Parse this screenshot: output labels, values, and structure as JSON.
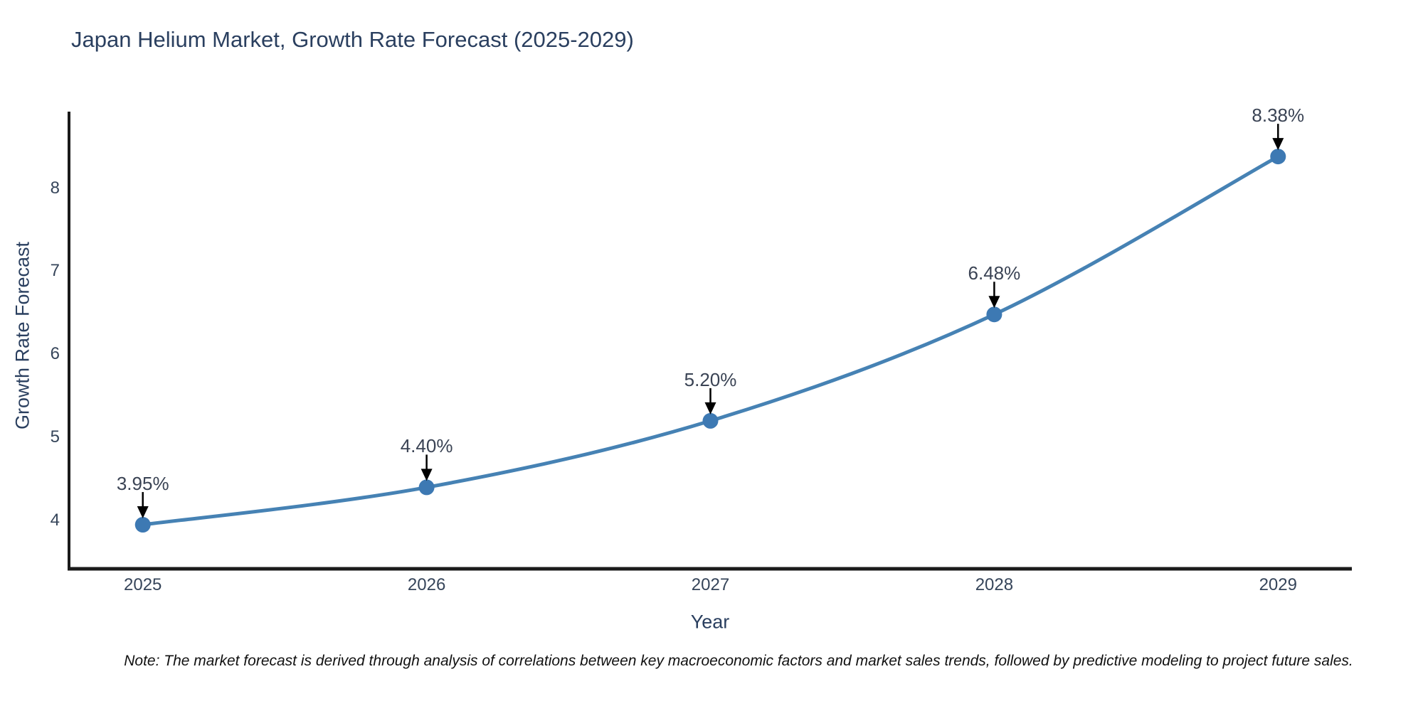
{
  "title": "Japan Helium Market, Growth Rate Forecast (2025-2029)",
  "note": "Note: The market forecast is derived through analysis of correlations between key macroeconomic factors and market sales trends, followed by predictive modeling to project future sales.",
  "chart_data": {
    "type": "line",
    "title": "Japan Helium Market, Growth Rate Forecast (2025-2029)",
    "xlabel": "Year",
    "ylabel": "Growth Rate Forecast",
    "x": [
      2025,
      2026,
      2027,
      2028,
      2029
    ],
    "values": [
      3.95,
      4.4,
      5.2,
      6.48,
      8.38
    ],
    "point_labels": [
      "3.95%",
      "4.40%",
      "5.20%",
      "6.48%",
      "8.38%"
    ],
    "yticks": [
      4,
      5,
      6,
      7,
      8
    ],
    "xlim": [
      2024.74,
      2029.26
    ],
    "ylim": [
      3.42,
      8.92
    ],
    "grid": false,
    "legend": null,
    "smooth": true,
    "colors": {
      "line": "#4682b4",
      "marker": "#3d79b3",
      "axis": "#1a1a1a",
      "arrow": "#000000",
      "title_text": "#2a3f5f",
      "tick_text": "#36455a",
      "annotation_text": "#3a4354"
    }
  }
}
